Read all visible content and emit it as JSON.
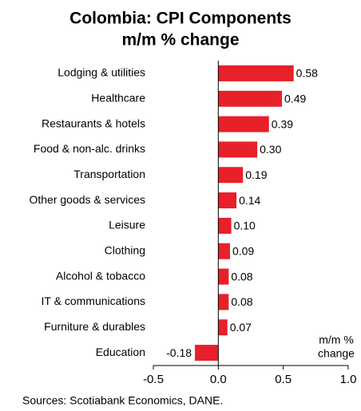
{
  "chart_data": {
    "type": "bar",
    "orientation": "horizontal",
    "title": "Colombia: CPI Components",
    "subtitle": "m/m % change",
    "categories": [
      "Lodging & utilities",
      "Healthcare",
      "Restaurants & hotels",
      "Food & non-alc. drinks",
      "Transportation",
      "Other goods & services",
      "Leisure",
      "Clothing",
      "Alcohol & tobacco",
      "IT & communications",
      "Furniture & durables",
      "Education"
    ],
    "values": [
      0.58,
      0.49,
      0.39,
      0.3,
      0.19,
      0.14,
      0.1,
      0.09,
      0.08,
      0.08,
      0.07,
      -0.18
    ],
    "value_labels": [
      "0.58",
      "0.49",
      "0.39",
      "0.30",
      "0.19",
      "0.14",
      "0.10",
      "0.09",
      "0.08",
      "0.08",
      "0.07",
      "-0.18"
    ],
    "color": "#e8202a",
    "xlim": [
      -0.5,
      1.0
    ],
    "xticks": [
      -0.5,
      {
        "value": 0,
        "label": "0.0"
      },
      0.5,
      {
        "value": 1,
        "label": "1.0"
      }
    ],
    "annotation": [
      "m/m %",
      "change"
    ],
    "source": "Sources: Scotiabank Economics, DANE."
  }
}
